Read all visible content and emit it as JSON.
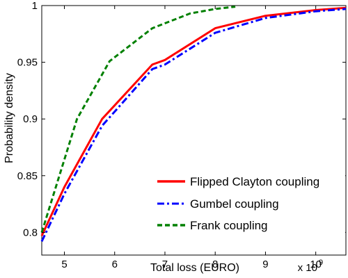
{
  "chart_data": {
    "type": "line",
    "title": "",
    "xlabel": "Total loss (EURO)",
    "ylabel": "Probability density",
    "x_multiplier_label": {
      "base": "x 10",
      "exponent": "9"
    },
    "xlim": [
      4.55,
      10.6
    ],
    "ylim": [
      0.78,
      1.0
    ],
    "xticks": [
      5,
      6,
      7,
      8,
      9,
      10
    ],
    "xtick_labels": [
      "5",
      "6",
      "7",
      "8",
      "9",
      "10"
    ],
    "yticks": [
      0.8,
      0.85,
      0.9,
      0.95,
      1.0
    ],
    "ytick_labels": [
      "0.8",
      "0.85",
      "0.9",
      "0.95",
      "1"
    ],
    "grid": false,
    "legend_position": "bottom-right",
    "series": [
      {
        "name": "Flipped Clayton coupling",
        "color": "#ff0000",
        "style": "solid",
        "x": [
          4.55,
          5.0,
          5.75,
          6.75,
          7.0,
          8.0,
          9.0,
          10.0,
          10.6
        ],
        "y": [
          0.797,
          0.84,
          0.9,
          0.948,
          0.952,
          0.98,
          0.991,
          0.996,
          0.998
        ]
      },
      {
        "name": "Gumbel coupling",
        "color": "#0000ff",
        "style": "dashdot",
        "x": [
          4.55,
          5.0,
          5.75,
          6.75,
          7.0,
          8.0,
          9.0,
          10.0,
          10.6
        ],
        "y": [
          0.792,
          0.834,
          0.894,
          0.944,
          0.948,
          0.976,
          0.989,
          0.995,
          0.997
        ]
      },
      {
        "name": "Frank coupling",
        "color": "#008000",
        "style": "dashed",
        "x": [
          4.55,
          5.25,
          5.9,
          6.75,
          7.5,
          8.0,
          8.4
        ],
        "y": [
          0.8,
          0.9,
          0.951,
          0.98,
          0.993,
          0.997,
          0.999
        ]
      }
    ]
  }
}
